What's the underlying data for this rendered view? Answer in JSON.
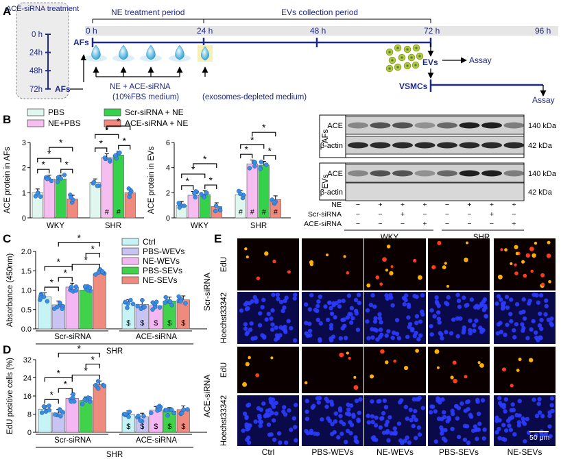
{
  "colors": {
    "navy": "#1f2a86",
    "series": [
      "#dff7ee",
      "#f6bdf1",
      "#36d14a",
      "#f08a7e"
    ],
    "series_c": [
      "#c6f3f6",
      "#c7c3f2",
      "#f5b7f3",
      "#3fd24a",
      "#ef8b7e"
    ],
    "dot": "#3d8ce0"
  },
  "panel_a": {
    "letter": "A",
    "treatment_title": "ACE-siRNA treatment",
    "treatment_times": [
      "0 h",
      "24h",
      "48h",
      "72h"
    ],
    "afs_left": "AFs",
    "afs_top": "AFs",
    "period_ne": "NE treatment period",
    "period_evs": "EVs collection period",
    "timeline": [
      "0 h",
      "24 h",
      "48 h",
      "72 h",
      "96 h"
    ],
    "ne_label_1": "NE + ACE-siRNA",
    "ne_label_2": "(10%FBS medium)",
    "exo_label": "(exosomes-depleted medium)",
    "evs": "EVs",
    "assay_1": "Assay",
    "vsmcs": "VSMCs",
    "assay_2": "Assay"
  },
  "panel_b": {
    "letter": "B",
    "legend": [
      "PBS",
      "NE+PBS",
      "Scr-siRNA + NE",
      "ACE-siRNA + NE"
    ],
    "sig": "*",
    "hash": "#",
    "blot": {
      "groups": [
        "AFs",
        "EVs"
      ],
      "rows": [
        "ACE",
        "β-actin",
        "ACE",
        "β-actin"
      ],
      "kda": [
        "140 kDa",
        "42 kDa",
        "140 kDa",
        "42 kDa"
      ],
      "treat_rows": [
        "NE",
        "Scr-siRNA",
        "ACE-siRNA"
      ],
      "signs": [
        [
          "−",
          "+",
          "+",
          "+",
          "−",
          "+",
          "+",
          "+"
        ],
        [
          "−",
          "−",
          "+",
          "−",
          "−",
          "−",
          "+",
          "−"
        ],
        [
          "−",
          "−",
          "−",
          "+",
          "−",
          "−",
          "−",
          "+"
        ]
      ],
      "strains": [
        "WKY",
        "SHR"
      ]
    }
  },
  "chart_data": [
    {
      "type": "bar",
      "ylabel": "ACE protein in AFs",
      "ylim": [
        0,
        3
      ],
      "yticks": [
        0,
        1,
        2,
        3
      ],
      "categories": [
        "WKY",
        "SHR"
      ],
      "series": [
        {
          "name": "PBS",
          "values": [
            1.0,
            1.4
          ]
        },
        {
          "name": "NE+PBS",
          "values": [
            1.55,
            2.4
          ]
        },
        {
          "name": "Scr-siRNA + NE",
          "values": [
            1.55,
            2.5
          ]
        },
        {
          "name": "ACE-siRNA + NE",
          "values": [
            0.75,
            1.0
          ]
        }
      ]
    },
    {
      "type": "bar",
      "ylabel": "ACE protein in EVs",
      "ylim": [
        0,
        6
      ],
      "yticks": [
        0,
        2,
        4,
        6
      ],
      "categories": [
        "WKY",
        "SHR"
      ],
      "series": [
        {
          "name": "PBS",
          "values": [
            1.0,
            1.85
          ]
        },
        {
          "name": "NE+PBS",
          "values": [
            1.8,
            4.3
          ]
        },
        {
          "name": "Scr-siRNA + NE",
          "values": [
            1.85,
            4.2
          ]
        },
        {
          "name": "ACE-siRNA + NE",
          "values": [
            0.9,
            1.45
          ]
        }
      ]
    },
    {
      "type": "bar",
      "ylabel": "Absorbance (450nm)",
      "ylim": [
        0,
        2.0
      ],
      "yticks": [
        0.0,
        0.5,
        1.0,
        1.5,
        2.0
      ],
      "categories": [
        "Scr-siRNA",
        "ACE-siRNA"
      ],
      "group_label": "SHR",
      "legend": [
        "Ctrl",
        "PBS-WEVs",
        "NE-WEVs",
        "PBS-SEVs",
        "NE-SEVs"
      ],
      "series": [
        {
          "name": "Ctrl",
          "values": [
            0.83,
            0.65
          ]
        },
        {
          "name": "PBS-WEVs",
          "values": [
            0.62,
            0.63
          ]
        },
        {
          "name": "NE-WEVs",
          "values": [
            1.08,
            0.6
          ]
        },
        {
          "name": "PBS-SEVs",
          "values": [
            1.0,
            0.72
          ]
        },
        {
          "name": "NE-SEVs",
          "values": [
            1.42,
            0.75
          ]
        }
      ]
    },
    {
      "type": "bar",
      "ylabel": "EdU positive cells (%)",
      "ylim": [
        0,
        32
      ],
      "yticks": [
        0,
        8,
        16,
        24,
        32
      ],
      "categories": [
        "Scr-siRNA",
        "ACE-siRNA"
      ],
      "group_label": "SHR",
      "series": [
        {
          "name": "Ctrl",
          "values": [
            10.2,
            7.8
          ]
        },
        {
          "name": "PBS-WEVs",
          "values": [
            8.5,
            6.8
          ]
        },
        {
          "name": "NE-WEVs",
          "values": [
            15.0,
            9.8
          ]
        },
        {
          "name": "PBS-SEVs",
          "values": [
            14.0,
            9.3
          ]
        },
        {
          "name": "NE-SEVs",
          "values": [
            21.0,
            10.0
          ]
        }
      ]
    }
  ],
  "panel_c": {
    "letter": "C",
    "dollar": "$"
  },
  "panel_d": {
    "letter": "D",
    "dollar": "$"
  },
  "panel_e": {
    "letter": "E",
    "groups": [
      "Scr-siRNA",
      "ACE-siRNA"
    ],
    "rows": [
      "EdU",
      "Hoechst33342"
    ],
    "cols": [
      "Ctrl",
      "PBS-WEVs",
      "NE-WEVs",
      "PBS-SEVs",
      "NE-SEVs"
    ],
    "scale_bar": "50 μm"
  }
}
